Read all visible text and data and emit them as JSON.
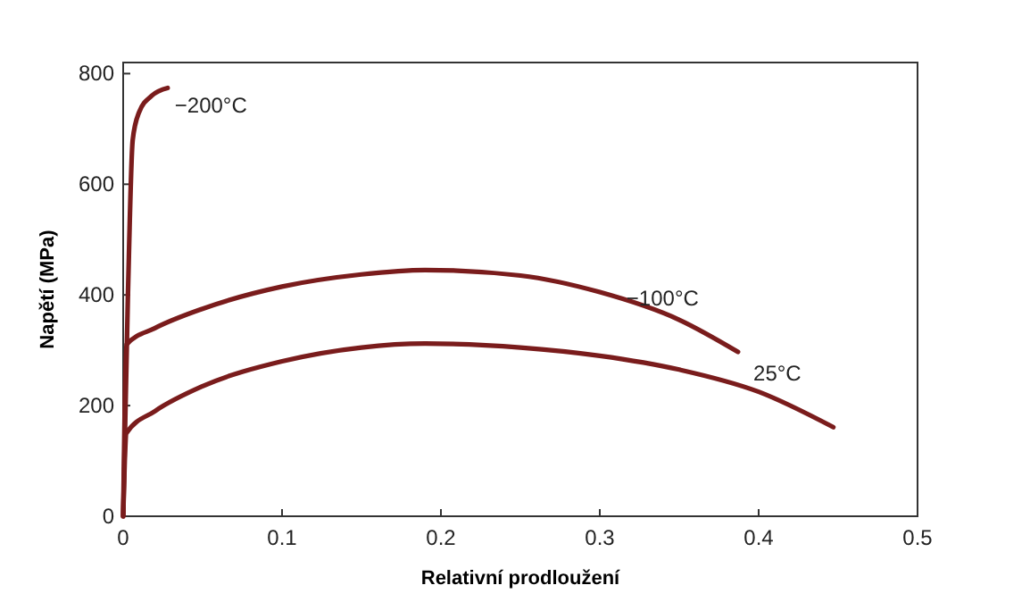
{
  "chart_data": {
    "type": "line",
    "xlabel": "Relativní prodloužení",
    "ylabel": "Napětí (MPa)",
    "xlim": [
      0,
      0.5
    ],
    "ylim": [
      0,
      820
    ],
    "xticks": [
      0,
      0.1,
      0.2,
      0.3,
      0.4,
      0.5
    ],
    "yticks": [
      0,
      200,
      400,
      600,
      800
    ],
    "grid": false,
    "legend": false,
    "marker": "none",
    "line_style": "solid",
    "series": [
      {
        "name": "−200°C",
        "color": "#7a1c1c",
        "x": [
          0,
          0.003,
          0.006,
          0.01,
          0.018,
          0.028
        ],
        "values": [
          0,
          400,
          680,
          730,
          760,
          774
        ]
      },
      {
        "name": "−100°C",
        "color": "#7a1c1c",
        "x": [
          0,
          0.001,
          0.002,
          0.02,
          0.05,
          0.1,
          0.15,
          0.19,
          0.25,
          0.3,
          0.35,
          0.387
        ],
        "values": [
          0,
          200,
          310,
          340,
          375,
          415,
          437,
          445,
          435,
          405,
          355,
          297
        ]
      },
      {
        "name": "25°C",
        "color": "#7a1c1c",
        "x": [
          0,
          0.001,
          0.002,
          0.02,
          0.05,
          0.1,
          0.15,
          0.19,
          0.25,
          0.3,
          0.35,
          0.4,
          0.447
        ],
        "values": [
          0,
          100,
          150,
          190,
          235,
          280,
          305,
          312,
          305,
          290,
          265,
          225,
          161
        ]
      }
    ]
  }
}
